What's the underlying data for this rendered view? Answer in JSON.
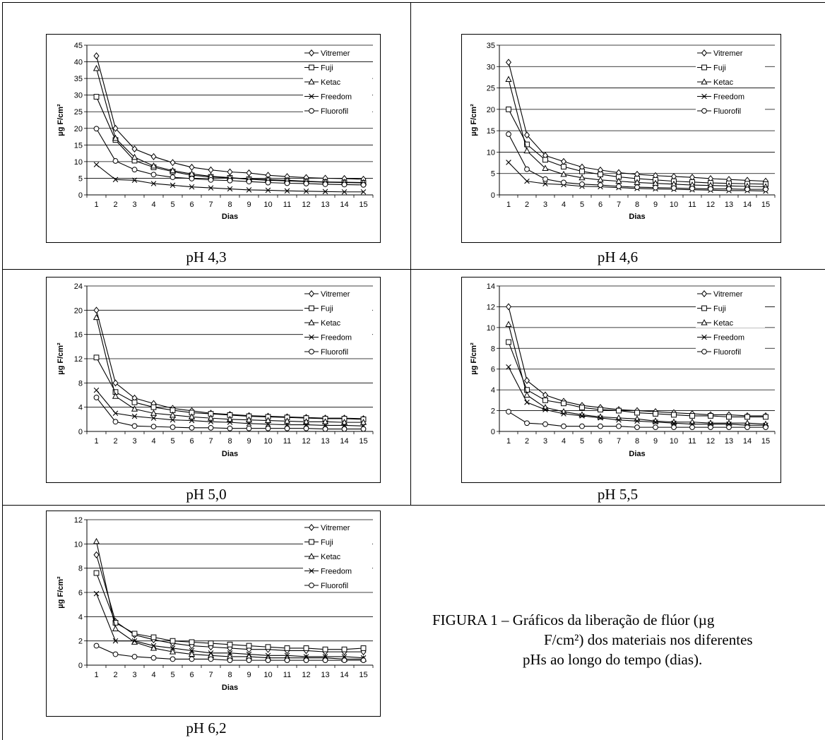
{
  "caption": {
    "line1": "FIGURA 1 – Gráficos da liberação de flúor (µg",
    "line2": "F/cm²) dos materiais nos diferentes",
    "line3": "pHs ao longo do tempo (dias)."
  },
  "chart_data": [
    {
      "type": "line",
      "panel_caption": "pH 4,3",
      "xlabel": "Dias",
      "ylabel": "µg F/cm²",
      "x": [
        1,
        2,
        3,
        4,
        5,
        6,
        7,
        8,
        9,
        10,
        11,
        12,
        13,
        14,
        15
      ],
      "ylim": [
        0,
        45
      ],
      "yticks": [
        0,
        5,
        10,
        15,
        20,
        25,
        30,
        35,
        40,
        45
      ],
      "grid": true,
      "legend": "top-right",
      "series": [
        {
          "name": "Vitremer",
          "marker": "diamond",
          "values": [
            41.8,
            20.0,
            13.8,
            11.5,
            9.7,
            8.3,
            7.5,
            6.9,
            6.6,
            5.9,
            5.5,
            5.2,
            5.0,
            4.9,
            4.7
          ]
        },
        {
          "name": "Fuji",
          "marker": "square",
          "values": [
            29.5,
            16.5,
            10.3,
            8.3,
            7.0,
            5.9,
            5.4,
            5.1,
            4.7,
            4.4,
            4.2,
            4.0,
            3.8,
            3.7,
            3.6
          ]
        },
        {
          "name": "Ketac",
          "marker": "triangle",
          "values": [
            38.0,
            17.0,
            11.3,
            8.7,
            7.3,
            6.3,
            5.6,
            5.2,
            4.8,
            4.6,
            4.4,
            4.1,
            3.9,
            3.8,
            3.7
          ]
        },
        {
          "name": "Freedom",
          "marker": "x",
          "values": [
            9.1,
            4.6,
            4.4,
            3.4,
            2.9,
            2.4,
            2.1,
            1.8,
            1.5,
            1.4,
            1.2,
            1.1,
            1.0,
            0.9,
            0.9
          ]
        },
        {
          "name": "Fluorofil",
          "marker": "circle",
          "values": [
            19.9,
            10.2,
            7.6,
            6.1,
            5.3,
            4.9,
            4.5,
            4.3,
            4.0,
            3.7,
            3.5,
            3.4,
            3.2,
            3.1,
            3.0
          ]
        }
      ]
    },
    {
      "type": "line",
      "panel_caption": "pH 4,6",
      "xlabel": "Dias",
      "ylabel": "µg F/cm²",
      "x": [
        1,
        2,
        3,
        4,
        5,
        6,
        7,
        8,
        9,
        10,
        11,
        12,
        13,
        14,
        15
      ],
      "ylim": [
        0,
        35
      ],
      "yticks": [
        0,
        5,
        10,
        15,
        20,
        25,
        30,
        35
      ],
      "grid": true,
      "legend": "top-right",
      "series": [
        {
          "name": "Vitremer",
          "marker": "diamond",
          "values": [
            31.0,
            14.0,
            9.2,
            7.8,
            6.5,
            5.8,
            5.2,
            4.8,
            4.5,
            4.3,
            4.1,
            3.8,
            3.6,
            3.4,
            3.2
          ]
        },
        {
          "name": "Fuji",
          "marker": "square",
          "values": [
            20.0,
            11.8,
            8.2,
            6.6,
            5.5,
            4.8,
            4.2,
            3.8,
            3.5,
            3.2,
            3.0,
            2.8,
            2.7,
            2.6,
            2.5
          ]
        },
        {
          "name": "Ketac",
          "marker": "triangle",
          "values": [
            27.0,
            10.3,
            6.2,
            4.8,
            4.0,
            3.5,
            3.2,
            2.9,
            2.7,
            2.5,
            2.3,
            2.2,
            2.1,
            2.0,
            1.9
          ]
        },
        {
          "name": "Freedom",
          "marker": "x",
          "values": [
            7.6,
            3.2,
            2.6,
            2.4,
            2.0,
            1.9,
            1.7,
            1.5,
            1.4,
            1.3,
            1.2,
            1.1,
            1.0,
            1.0,
            0.9
          ]
        },
        {
          "name": "Fluorofil",
          "marker": "circle",
          "values": [
            14.2,
            6.0,
            3.7,
            2.9,
            2.5,
            2.3,
            2.0,
            1.8,
            1.7,
            1.6,
            1.5,
            1.4,
            1.4,
            1.3,
            1.3
          ]
        }
      ]
    },
    {
      "type": "line",
      "panel_caption": "pH 5,0",
      "xlabel": "Dias",
      "ylabel": "µg F/cm²",
      "x": [
        1,
        2,
        3,
        4,
        5,
        6,
        7,
        8,
        9,
        10,
        11,
        12,
        13,
        14,
        15
      ],
      "ylim": [
        0,
        24
      ],
      "yticks": [
        0,
        4,
        8,
        12,
        16,
        20,
        24
      ],
      "grid": true,
      "legend": "top-right",
      "series": [
        {
          "name": "Vitremer",
          "marker": "diamond",
          "values": [
            20.0,
            8.0,
            5.5,
            4.6,
            3.8,
            3.4,
            3.0,
            2.8,
            2.6,
            2.5,
            2.4,
            2.3,
            2.2,
            2.2,
            2.1
          ]
        },
        {
          "name": "Fuji",
          "marker": "square",
          "values": [
            12.2,
            6.5,
            4.8,
            4.0,
            3.5,
            3.1,
            2.9,
            2.7,
            2.5,
            2.4,
            2.3,
            2.2,
            2.1,
            2.1,
            2.0
          ]
        },
        {
          "name": "Ketac",
          "marker": "triangle",
          "values": [
            18.8,
            5.8,
            3.7,
            3.0,
            2.7,
            2.4,
            2.2,
            2.0,
            1.9,
            1.8,
            1.7,
            1.6,
            1.6,
            1.5,
            1.5
          ]
        },
        {
          "name": "Freedom",
          "marker": "x",
          "values": [
            6.8,
            3.0,
            2.5,
            2.2,
            1.9,
            1.8,
            1.6,
            1.5,
            1.3,
            1.2,
            1.1,
            1.1,
            1.0,
            1.0,
            0.9
          ]
        },
        {
          "name": "Fluorofil",
          "marker": "circle",
          "values": [
            5.6,
            1.6,
            0.9,
            0.8,
            0.7,
            0.6,
            0.6,
            0.5,
            0.5,
            0.5,
            0.5,
            0.5,
            0.4,
            0.4,
            0.4
          ]
        }
      ]
    },
    {
      "type": "line",
      "panel_caption": "pH 5,5",
      "xlabel": "Dias",
      "ylabel": "µg F/cm²",
      "x": [
        1,
        2,
        3,
        4,
        5,
        6,
        7,
        8,
        9,
        10,
        11,
        12,
        13,
        14,
        15
      ],
      "ylim": [
        0,
        14
      ],
      "yticks": [
        0,
        2,
        4,
        6,
        8,
        10,
        12,
        14
      ],
      "grid": true,
      "legend": "top-right",
      "series": [
        {
          "name": "Vitremer",
          "marker": "diamond",
          "values": [
            12.0,
            4.9,
            3.5,
            2.9,
            2.5,
            2.3,
            2.1,
            2.0,
            1.9,
            1.8,
            1.7,
            1.6,
            1.6,
            1.5,
            1.5
          ]
        },
        {
          "name": "Fuji",
          "marker": "square",
          "values": [
            8.6,
            4.0,
            3.0,
            2.7,
            2.3,
            2.1,
            2.0,
            1.8,
            1.7,
            1.6,
            1.5,
            1.5,
            1.4,
            1.4,
            1.4
          ]
        },
        {
          "name": "Ketac",
          "marker": "triangle",
          "values": [
            10.3,
            3.5,
            2.3,
            1.9,
            1.6,
            1.4,
            1.3,
            1.2,
            1.0,
            0.9,
            0.9,
            0.8,
            0.8,
            0.8,
            0.7
          ]
        },
        {
          "name": "Freedom",
          "marker": "x",
          "values": [
            6.2,
            2.8,
            2.1,
            1.7,
            1.5,
            1.3,
            1.1,
            1.0,
            0.9,
            0.8,
            0.7,
            0.7,
            0.7,
            0.6,
            0.6
          ]
        },
        {
          "name": "Fluorofil",
          "marker": "circle",
          "values": [
            1.9,
            0.8,
            0.7,
            0.5,
            0.5,
            0.5,
            0.5,
            0.4,
            0.4,
            0.4,
            0.4,
            0.4,
            0.4,
            0.4,
            0.4
          ]
        }
      ]
    },
    {
      "type": "line",
      "panel_caption": "pH 6,2",
      "xlabel": "Dias",
      "ylabel": "µg F/cm²",
      "x": [
        1,
        2,
        3,
        4,
        5,
        6,
        7,
        8,
        9,
        10,
        11,
        12,
        13,
        14,
        15
      ],
      "ylim": [
        0,
        12
      ],
      "yticks": [
        0,
        2,
        4,
        6,
        8,
        10,
        12
      ],
      "grid": true,
      "legend": "top-right",
      "series": [
        {
          "name": "Vitremer",
          "marker": "diamond",
          "values": [
            9.1,
            3.6,
            2.5,
            2.1,
            1.8,
            1.6,
            1.5,
            1.4,
            1.3,
            1.3,
            1.2,
            1.2,
            1.1,
            1.1,
            1.1
          ]
        },
        {
          "name": "Fuji",
          "marker": "square",
          "values": [
            7.6,
            3.5,
            2.6,
            2.3,
            2.0,
            1.9,
            1.8,
            1.7,
            1.6,
            1.5,
            1.4,
            1.4,
            1.3,
            1.3,
            1.4
          ]
        },
        {
          "name": "Ketac",
          "marker": "triangle",
          "values": [
            10.2,
            3.0,
            1.9,
            1.4,
            1.1,
            0.9,
            0.8,
            0.7,
            0.7,
            0.6,
            0.6,
            0.6,
            0.6,
            0.5,
            0.5
          ]
        },
        {
          "name": "Freedom",
          "marker": "x",
          "values": [
            5.9,
            2.0,
            2.0,
            1.6,
            1.4,
            1.2,
            1.0,
            1.0,
            0.9,
            0.8,
            0.8,
            0.7,
            0.7,
            0.7,
            0.6
          ]
        },
        {
          "name": "Fluorofil",
          "marker": "circle",
          "values": [
            1.6,
            0.9,
            0.7,
            0.6,
            0.5,
            0.5,
            0.5,
            0.4,
            0.4,
            0.4,
            0.4,
            0.4,
            0.4,
            0.4,
            0.4
          ]
        }
      ]
    }
  ]
}
